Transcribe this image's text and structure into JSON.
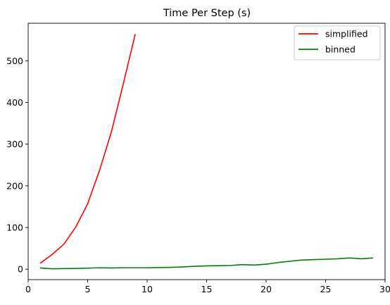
{
  "chart_data": {
    "type": "line",
    "title": "Time Per Step (s)",
    "xlabel": "",
    "ylabel": "",
    "xlim": [
      0,
      30
    ],
    "ylim": [
      -25,
      590
    ],
    "xticks": [
      0,
      5,
      10,
      15,
      20,
      25,
      30
    ],
    "yticks": [
      0,
      100,
      200,
      300,
      400,
      500
    ],
    "grid": false,
    "legend_position": "top-right",
    "series": [
      {
        "name": "simplified",
        "color": "#ff0000",
        "x": [
          1,
          2,
          3,
          4,
          5,
          6,
          7,
          8,
          9
        ],
        "y": [
          14,
          35,
          60,
          101,
          157,
          237,
          330,
          445,
          564
        ]
      },
      {
        "name": "binned",
        "color": "#008000",
        "x": [
          1,
          2,
          3,
          4,
          5,
          6,
          7,
          8,
          9,
          10,
          11,
          12,
          13,
          14,
          15,
          16,
          17,
          18,
          19,
          20,
          21,
          22,
          23,
          24,
          25,
          26,
          27,
          28,
          29
        ],
        "y": [
          3,
          1,
          1.5,
          2,
          2.5,
          3.5,
          3,
          3.5,
          3.5,
          3.5,
          4,
          4.5,
          5.5,
          7,
          8,
          8.5,
          9,
          11,
          10,
          12,
          16,
          19,
          22,
          23,
          24,
          25,
          27,
          25,
          27
        ]
      }
    ]
  }
}
